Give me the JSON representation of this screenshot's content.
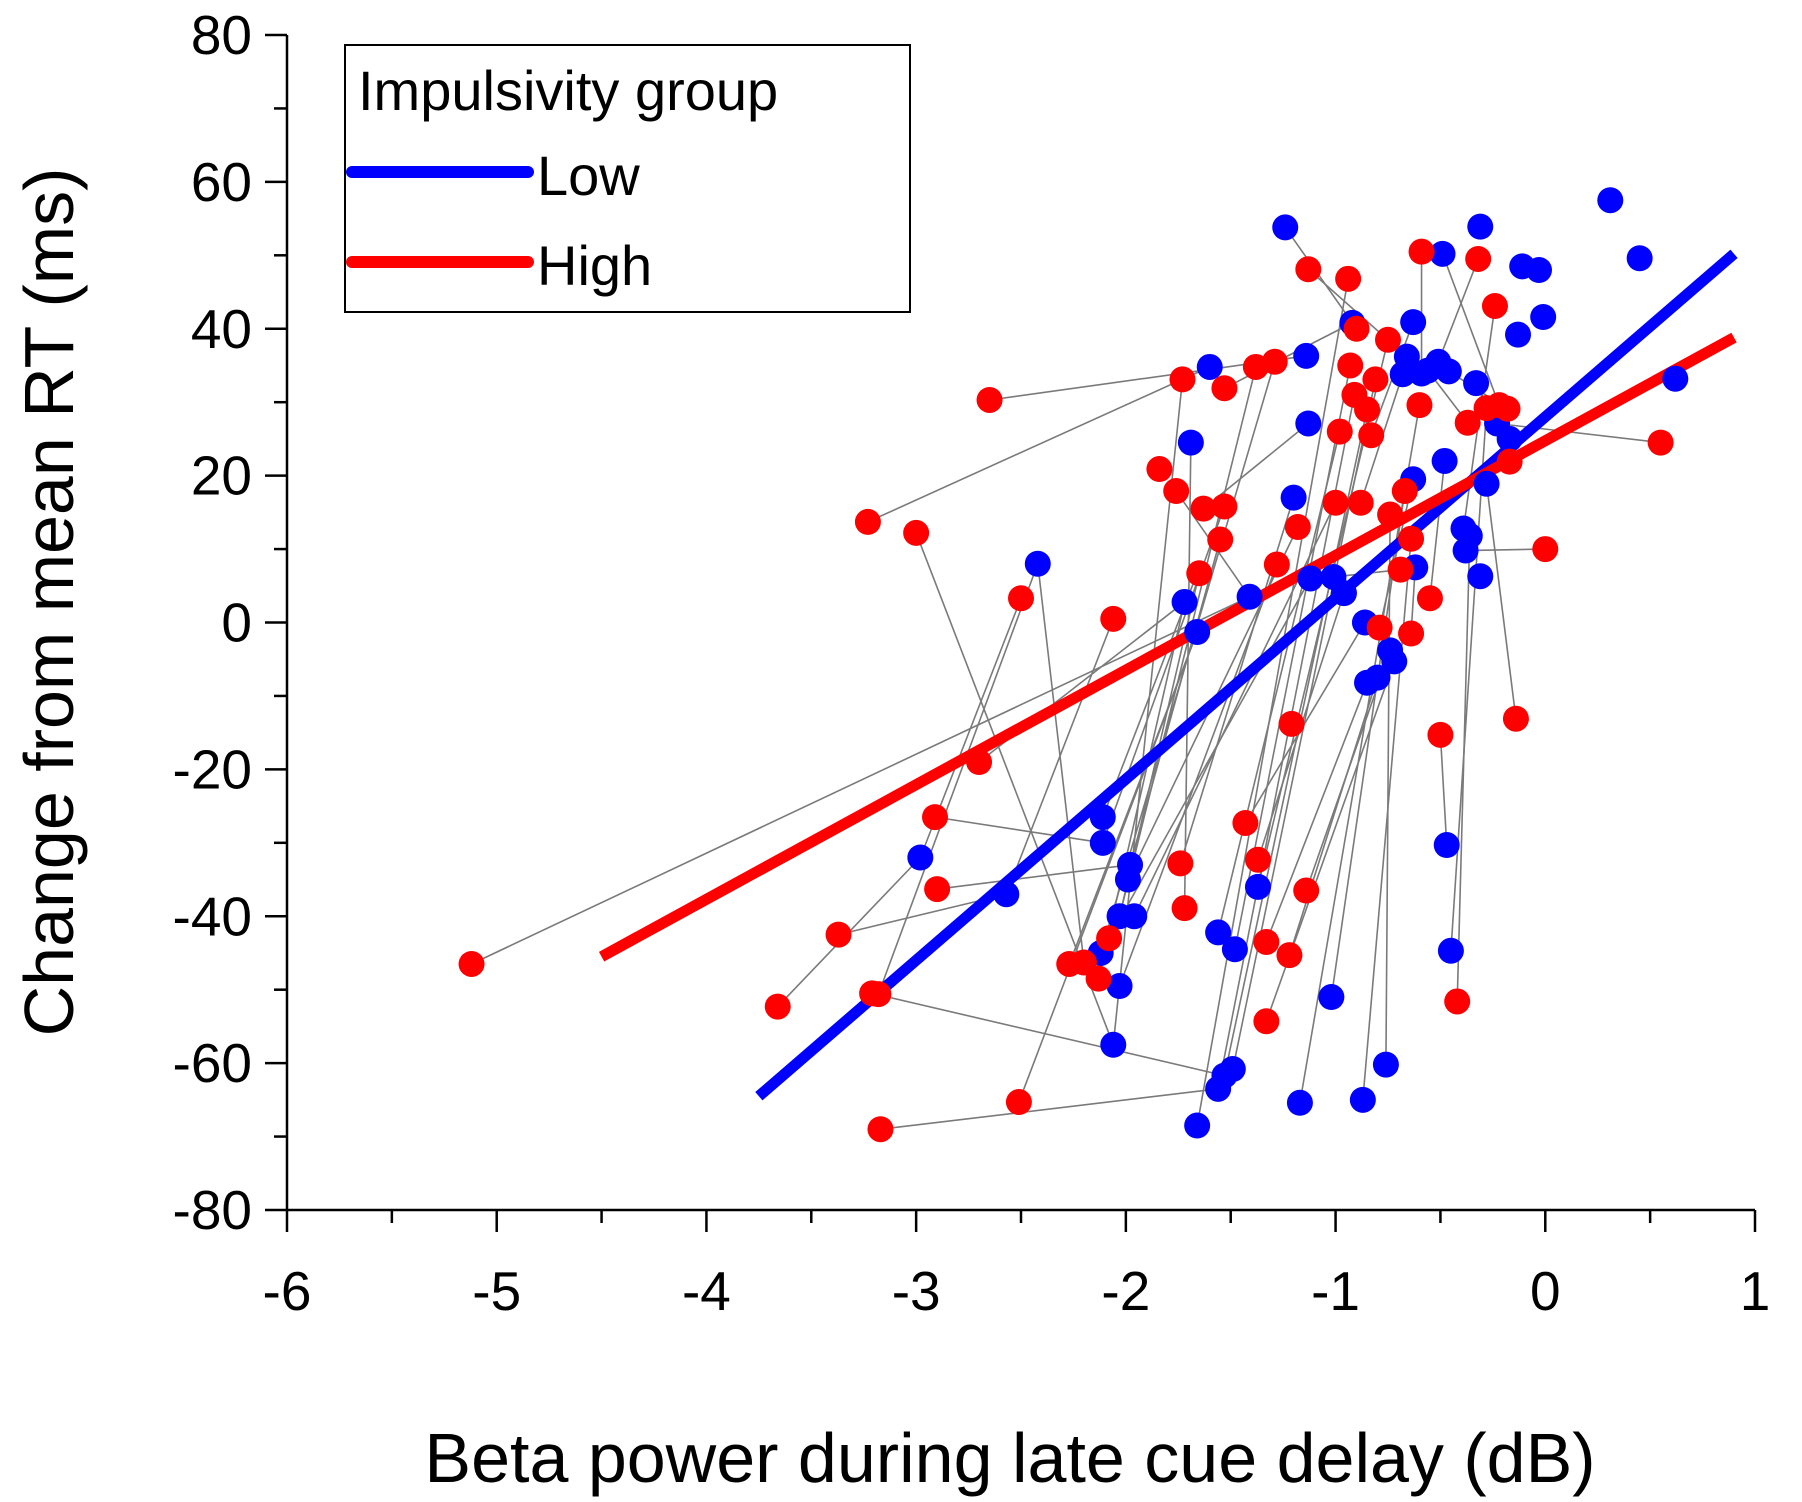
{
  "chart_data": {
    "type": "scatter",
    "title": "",
    "xlabel": "Beta power during late cue delay (dB)",
    "ylabel": "Change from mean RT (ms)",
    "xlim": [
      -6,
      1
    ],
    "ylim": [
      -80,
      80
    ],
    "xticks": [
      -6,
      -5,
      -4,
      -3,
      -2,
      -1,
      0,
      1
    ],
    "yticks": [
      -80,
      -60,
      -40,
      -20,
      0,
      20,
      40,
      60,
      80
    ],
    "xtick_labels": [
      "-6",
      "-5",
      "-4",
      "-3",
      "-2",
      "-1",
      "0",
      "1"
    ],
    "ytick_labels": [
      "-80",
      "-60",
      "-40",
      "-20",
      "0",
      "20",
      "40",
      "60",
      "80"
    ],
    "legend": {
      "title": "Impulsivity group",
      "position": "top-left",
      "entries": [
        {
          "label": "Low",
          "color": "#0000ff"
        },
        {
          "label": "High",
          "color": "#ff0000"
        }
      ]
    },
    "series": [
      {
        "name": "Low",
        "color": "#0000ff",
        "points": [
          [
            -2.98,
            -32
          ],
          [
            -2.57,
            -37
          ],
          [
            -2.42,
            8
          ],
          [
            -2.11,
            -26.5
          ],
          [
            -2.11,
            -30
          ],
          [
            -2.12,
            -45
          ],
          [
            -2.06,
            -57.5
          ],
          [
            -2.03,
            -40
          ],
          [
            -2.03,
            -49.5
          ],
          [
            -1.98,
            -33
          ],
          [
            -1.99,
            -35
          ],
          [
            -1.96,
            -40
          ],
          [
            -1.72,
            2.8
          ],
          [
            -1.69,
            24.5
          ],
          [
            -1.66,
            -1.3
          ],
          [
            -1.66,
            -68.5
          ],
          [
            -1.6,
            34.8
          ],
          [
            -1.56,
            -42.2
          ],
          [
            -1.56,
            -63.5
          ],
          [
            -1.53,
            -61.7
          ],
          [
            -1.49,
            -60.8
          ],
          [
            -1.48,
            -44.5
          ],
          [
            -1.41,
            3.5
          ],
          [
            -1.37,
            -36
          ],
          [
            -1.24,
            53.8
          ],
          [
            -1.2,
            17
          ],
          [
            -1.17,
            -65.4
          ],
          [
            -1.14,
            36.3
          ],
          [
            -1.13,
            27.1
          ],
          [
            -1.12,
            6
          ],
          [
            -1.01,
            6.2
          ],
          [
            -1.02,
            -51
          ],
          [
            -0.96,
            4
          ],
          [
            -0.92,
            40.8
          ],
          [
            -0.87,
            -65
          ],
          [
            -0.86,
            0
          ],
          [
            -0.85,
            -8.2
          ],
          [
            -0.8,
            -7.5
          ],
          [
            -0.76,
            -60.2
          ],
          [
            -0.74,
            -3.8
          ],
          [
            -0.72,
            -5.3
          ],
          [
            -0.68,
            33.8
          ],
          [
            -0.66,
            36.2
          ],
          [
            -0.63,
            40.9
          ],
          [
            -0.63,
            19.5
          ],
          [
            -0.62,
            7.5
          ],
          [
            -0.59,
            33.9
          ],
          [
            -0.56,
            34.3
          ],
          [
            -0.51,
            35.5
          ],
          [
            -0.49,
            50.2
          ],
          [
            -0.48,
            22
          ],
          [
            -0.46,
            34.2
          ],
          [
            -0.47,
            -30.3
          ],
          [
            -0.45,
            -44.7
          ],
          [
            -0.39,
            12.8
          ],
          [
            -0.38,
            9.8
          ],
          [
            -0.36,
            11.8
          ],
          [
            -0.33,
            32.6
          ],
          [
            -0.31,
            53.9
          ],
          [
            -0.31,
            6.3
          ],
          [
            -0.28,
            18.9
          ],
          [
            -0.23,
            27.1
          ],
          [
            -0.17,
            25
          ],
          [
            -0.13,
            39.2
          ],
          [
            -0.11,
            48.5
          ],
          [
            -0.01,
            41.6
          ],
          [
            -0.03,
            48
          ],
          [
            0.31,
            57.5
          ],
          [
            0.45,
            49.6
          ],
          [
            0.62,
            33.2
          ]
        ]
      },
      {
        "name": "High",
        "color": "#ff0000",
        "points": [
          [
            -5.12,
            -46.5
          ],
          [
            -3.66,
            -52.3
          ],
          [
            -3.37,
            -42.5
          ],
          [
            -3.23,
            13.7
          ],
          [
            -3.21,
            -50.5
          ],
          [
            -3.17,
            -69
          ],
          [
            -3.18,
            -50.6
          ],
          [
            -3.0,
            12.2
          ],
          [
            -2.91,
            -26.5
          ],
          [
            -2.9,
            -36.3
          ],
          [
            -2.7,
            -19
          ],
          [
            -2.65,
            30.3
          ],
          [
            -2.51,
            -65.3
          ],
          [
            -2.5,
            3.3
          ],
          [
            -2.27,
            -46.5
          ],
          [
            -2.2,
            -46.3
          ],
          [
            -2.13,
            -48.5
          ],
          [
            -2.08,
            -43
          ],
          [
            -2.06,
            0.5
          ],
          [
            -1.84,
            20.9
          ],
          [
            -1.76,
            17.9
          ],
          [
            -1.74,
            -32.8
          ],
          [
            -1.72,
            -38.9
          ],
          [
            -1.73,
            33.1
          ],
          [
            -1.65,
            6.7
          ],
          [
            -1.63,
            15.5
          ],
          [
            -1.55,
            11.3
          ],
          [
            -1.53,
            15.8
          ],
          [
            -1.53,
            31.9
          ],
          [
            -1.43,
            -27.3
          ],
          [
            -1.38,
            34.8
          ],
          [
            -1.37,
            -32.3
          ],
          [
            -1.33,
            -43.5
          ],
          [
            -1.33,
            -54.3
          ],
          [
            -1.29,
            35.5
          ],
          [
            -1.28,
            7.9
          ],
          [
            -1.22,
            -45.3
          ],
          [
            -1.21,
            -13.8
          ],
          [
            -1.18,
            13
          ],
          [
            -1.14,
            -36.5
          ],
          [
            -1.13,
            48.1
          ],
          [
            -1.0,
            16.3
          ],
          [
            -0.98,
            26
          ],
          [
            -0.94,
            46.8
          ],
          [
            -0.93,
            35
          ],
          [
            -0.91,
            31
          ],
          [
            -0.9,
            40
          ],
          [
            -0.88,
            16.3
          ],
          [
            -0.85,
            29
          ],
          [
            -0.83,
            25.5
          ],
          [
            -0.81,
            33.1
          ],
          [
            -0.79,
            -0.7
          ],
          [
            -0.75,
            38.5
          ],
          [
            -0.74,
            14.7
          ],
          [
            -0.69,
            7.2
          ],
          [
            -0.67,
            17.9
          ],
          [
            -0.64,
            -1.5
          ],
          [
            -0.64,
            11.4
          ],
          [
            -0.6,
            29.6
          ],
          [
            -0.59,
            50.5
          ],
          [
            -0.55,
            3.3
          ],
          [
            -0.5,
            -15.3
          ],
          [
            -0.42,
            -51.6
          ],
          [
            -0.37,
            27.2
          ],
          [
            -0.32,
            49.5
          ],
          [
            -0.28,
            29.2
          ],
          [
            -0.24,
            43.1
          ],
          [
            -0.22,
            29.6
          ],
          [
            -0.18,
            29.1
          ],
          [
            -0.17,
            21.9
          ],
          [
            -0.14,
            -13.1
          ],
          [
            0.0,
            10
          ],
          [
            0.55,
            24.5
          ]
        ]
      }
    ],
    "pairs": [
      [
        [
          -2.98,
          -32
        ],
        [
          -2.5,
          3.3
        ]
      ],
      [
        [
          -2.57,
          -37
        ],
        [
          -2.06,
          0.5
        ]
      ],
      [
        [
          -2.42,
          8
        ],
        [
          -2.2,
          -46.3
        ]
      ],
      [
        [
          -2.11,
          -26.5
        ],
        [
          -1.66,
          6.7
        ]
      ],
      [
        [
          -2.11,
          -30
        ],
        [
          -1.53,
          15.8
        ]
      ],
      [
        [
          -2.12,
          -45
        ],
        [
          -1.29,
          35.5
        ]
      ],
      [
        [
          -2.06,
          -57.5
        ],
        [
          -1.73,
          33.1
        ]
      ],
      [
        [
          -2.03,
          -40
        ],
        [
          -1.38,
          34.8
        ]
      ],
      [
        [
          -2.03,
          -49.5
        ],
        [
          -1.28,
          7.9
        ]
      ],
      [
        [
          -1.98,
          -33
        ],
        [
          -1.55,
          11.3
        ]
      ],
      [
        [
          -1.99,
          -35
        ],
        [
          -1.18,
          13
        ]
      ],
      [
        [
          -1.96,
          -40
        ],
        [
          -1.0,
          16.3
        ]
      ],
      [
        [
          -1.72,
          2.8
        ],
        [
          -2.13,
          -48.5
        ]
      ],
      [
        [
          -1.69,
          24.5
        ],
        [
          -1.72,
          -38.9
        ]
      ],
      [
        [
          -1.66,
          -1.3
        ],
        [
          -2.27,
          -46.5
        ]
      ],
      [
        [
          -1.66,
          -68.5
        ],
        [
          -0.94,
          46.8
        ]
      ],
      [
        [
          -1.6,
          34.8
        ],
        [
          -3.23,
          13.7
        ]
      ],
      [
        [
          -1.56,
          -42.2
        ],
        [
          -0.98,
          26
        ]
      ],
      [
        [
          -1.56,
          -63.5
        ],
        [
          -0.91,
          31
        ]
      ],
      [
        [
          -1.53,
          -61.7
        ],
        [
          -0.85,
          29
        ]
      ],
      [
        [
          -1.49,
          -60.8
        ],
        [
          -0.81,
          33.1
        ]
      ],
      [
        [
          -1.48,
          -44.5
        ],
        [
          -0.93,
          35
        ]
      ],
      [
        [
          -1.41,
          3.5
        ],
        [
          -1.76,
          17.9
        ]
      ],
      [
        [
          -1.37,
          -36
        ],
        [
          -0.75,
          38.5
        ]
      ],
      [
        [
          -1.24,
          53.8
        ],
        [
          -0.9,
          40
        ]
      ],
      [
        [
          -1.2,
          17
        ],
        [
          -1.74,
          -32.8
        ]
      ],
      [
        [
          -1.17,
          -65.4
        ],
        [
          -0.6,
          29.6
        ]
      ],
      [
        [
          -1.14,
          36.3
        ],
        [
          -2.65,
          30.3
        ]
      ],
      [
        [
          -1.13,
          27.1
        ],
        [
          -1.63,
          15.5
        ]
      ],
      [
        [
          -1.12,
          6
        ],
        [
          -2.08,
          -43
        ]
      ],
      [
        [
          -1.01,
          6.2
        ],
        [
          -0.69,
          7.2
        ]
      ],
      [
        [
          -1.02,
          -51
        ],
        [
          -0.67,
          17.9
        ]
      ],
      [
        [
          -0.96,
          4
        ],
        [
          -1.37,
          -32.3
        ]
      ],
      [
        [
          -0.92,
          40.8
        ],
        [
          -1.53,
          31.9
        ]
      ],
      [
        [
          -0.87,
          -65
        ],
        [
          -0.64,
          11.4
        ]
      ],
      [
        [
          -0.86,
          0
        ],
        [
          -1.43,
          -27.3
        ]
      ],
      [
        [
          -0.85,
          -8.2
        ],
        [
          -1.33,
          -43.5
        ]
      ],
      [
        [
          -0.8,
          -7.5
        ],
        [
          -1.22,
          -45.3
        ]
      ],
      [
        [
          -0.76,
          -60.2
        ],
        [
          -0.74,
          14.7
        ]
      ],
      [
        [
          -0.74,
          -3.8
        ],
        [
          -1.14,
          -36.5
        ]
      ],
      [
        [
          -0.72,
          -5.3
        ],
        [
          -1.33,
          -54.3
        ]
      ],
      [
        [
          -0.68,
          33.8
        ],
        [
          -0.88,
          16.3
        ]
      ],
      [
        [
          -0.66,
          36.2
        ],
        [
          -1.13,
          48.1
        ]
      ],
      [
        [
          -0.63,
          40.9
        ],
        [
          -0.83,
          25.5
        ]
      ],
      [
        [
          -0.63,
          19.5
        ],
        [
          -0.79,
          -0.7
        ]
      ],
      [
        [
          -0.62,
          7.5
        ],
        [
          -0.64,
          -1.5
        ]
      ],
      [
        [
          -0.59,
          33.9
        ],
        [
          -0.59,
          50.5
        ]
      ],
      [
        [
          -0.56,
          34.3
        ],
        [
          -0.37,
          27.2
        ]
      ],
      [
        [
          -0.51,
          35.5
        ],
        [
          -0.32,
          49.5
        ]
      ],
      [
        [
          -0.49,
          50.2
        ],
        [
          -0.22,
          29.6
        ]
      ],
      [
        [
          -0.48,
          22
        ],
        [
          -0.55,
          3.3
        ]
      ],
      [
        [
          -0.46,
          34.2
        ],
        [
          -0.18,
          29.1
        ]
      ],
      [
        [
          -0.47,
          -30.3
        ],
        [
          -0.5,
          -15.3
        ]
      ],
      [
        [
          -0.45,
          -44.7
        ],
        [
          -0.28,
          29.2
        ]
      ],
      [
        [
          -0.39,
          12.8
        ],
        [
          -0.24,
          43.1
        ]
      ],
      [
        [
          -0.38,
          9.8
        ],
        [
          0.0,
          10
        ]
      ],
      [
        [
          -0.36,
          11.8
        ],
        [
          -0.42,
          -51.6
        ]
      ],
      [
        [
          -0.33,
          32.6
        ],
        [
          -0.17,
          21.9
        ]
      ],
      [
        [
          -0.28,
          18.9
        ],
        [
          -0.14,
          -13.1
        ]
      ],
      [
        [
          -0.23,
          27.1
        ],
        [
          0.55,
          24.5
        ]
      ],
      [
        [
          -2.42,
          8
        ],
        [
          -3.18,
          -50.6
        ]
      ],
      [
        [
          -2.57,
          -37
        ],
        [
          -3.37,
          -42.5
        ]
      ],
      [
        [
          -2.98,
          -32
        ],
        [
          -3.66,
          -52.3
        ]
      ],
      [
        [
          -1.41,
          3.5
        ],
        [
          -5.12,
          -46.5
        ]
      ],
      [
        [
          -2.11,
          -30
        ],
        [
          -2.91,
          -26.5
        ]
      ],
      [
        [
          -1.98,
          -33
        ],
        [
          -2.9,
          -36.3
        ]
      ],
      [
        [
          -1.72,
          2.8
        ],
        [
          -2.7,
          -19
        ]
      ],
      [
        [
          -1.66,
          -1.3
        ],
        [
          -2.51,
          -65.3
        ]
      ],
      [
        [
          -2.06,
          -57.5
        ],
        [
          -3.0,
          12.2
        ]
      ],
      [
        [
          -1.56,
          -63.5
        ],
        [
          -3.17,
          -69
        ]
      ],
      [
        [
          -1.53,
          -61.7
        ],
        [
          -3.21,
          -50.5
        ]
      ],
      [
        [
          -2.03,
          -40
        ],
        [
          -1.65,
          6.7
        ]
      ]
    ],
    "fit_lines": [
      {
        "series": "Low",
        "color": "#0000ff",
        "x": [
          -3.75,
          0.9
        ],
        "y": [
          -64.5,
          50.2
        ]
      },
      {
        "series": "High",
        "color": "#ff0000",
        "x": [
          -4.5,
          0.9
        ],
        "y": [
          -45.5,
          38.8
        ]
      }
    ]
  }
}
